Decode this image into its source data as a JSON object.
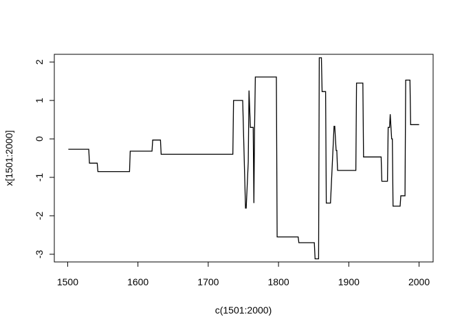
{
  "chart_data": {
    "type": "line",
    "style": "step",
    "title": "",
    "xlabel": "c(1501:2000)",
    "ylabel": "x[1501:2000]",
    "xlim": [
      1481,
      2020
    ],
    "ylim": [
      -3.2,
      2.2
    ],
    "x_ticks": [
      1500,
      1600,
      1700,
      1800,
      1900,
      2000
    ],
    "x_tick_labels": [
      "1500",
      "1600",
      "1700",
      "1800",
      "1900",
      "2000"
    ],
    "y_ticks": [
      -3,
      -2,
      -1,
      0,
      1,
      2
    ],
    "y_tick_labels": [
      "-3",
      "-2",
      "-1",
      "0",
      "1",
      "2"
    ],
    "grid": false,
    "legend": "none",
    "line_color": "#000000",
    "series": [
      {
        "x": [
          1501,
          1530,
          1531,
          1542,
          1543,
          1588,
          1589,
          1620,
          1621,
          1632,
          1633,
          1735,
          1736,
          1748,
          1749,
          1753,
          1754,
          1757,
          1758,
          1760,
          1761,
          1764,
          1765,
          1766,
          1767,
          1797,
          1798,
          1828,
          1829,
          1851,
          1852,
          1857,
          1858,
          1861,
          1862,
          1867,
          1868,
          1873,
          1874,
          1879,
          1880,
          1882,
          1883,
          1884,
          1885,
          1910,
          1911,
          1920,
          1921,
          1946,
          1947,
          1955,
          1956,
          1958,
          1959,
          1960,
          1961,
          1962,
          1963,
          1964,
          1965,
          1973,
          1974,
          1980,
          1981,
          1987,
          1988,
          2000
        ],
        "y": [
          -0.27,
          -0.27,
          -0.63,
          -0.63,
          -0.85,
          -0.85,
          -0.32,
          -0.32,
          -0.03,
          -0.03,
          -0.4,
          -0.4,
          1.0,
          1.0,
          1.0,
          -1.8,
          -1.8,
          -0.6,
          1.26,
          0.3,
          0.3,
          0.3,
          -1.67,
          0.3,
          1.61,
          1.61,
          -2.55,
          -2.55,
          -2.7,
          -2.7,
          -3.12,
          -3.12,
          2.11,
          2.11,
          1.23,
          1.23,
          -1.67,
          -1.67,
          -1.67,
          0.33,
          0.33,
          -0.3,
          -0.3,
          -0.82,
          -0.82,
          -0.82,
          1.45,
          1.45,
          -0.47,
          -0.47,
          -1.1,
          -1.1,
          0.3,
          0.3,
          0.64,
          0.3,
          0.0,
          0.0,
          -1.75,
          -1.75,
          -1.75,
          -1.75,
          -1.48,
          -1.48,
          1.53,
          1.53,
          0.37,
          0.37
        ]
      }
    ]
  }
}
